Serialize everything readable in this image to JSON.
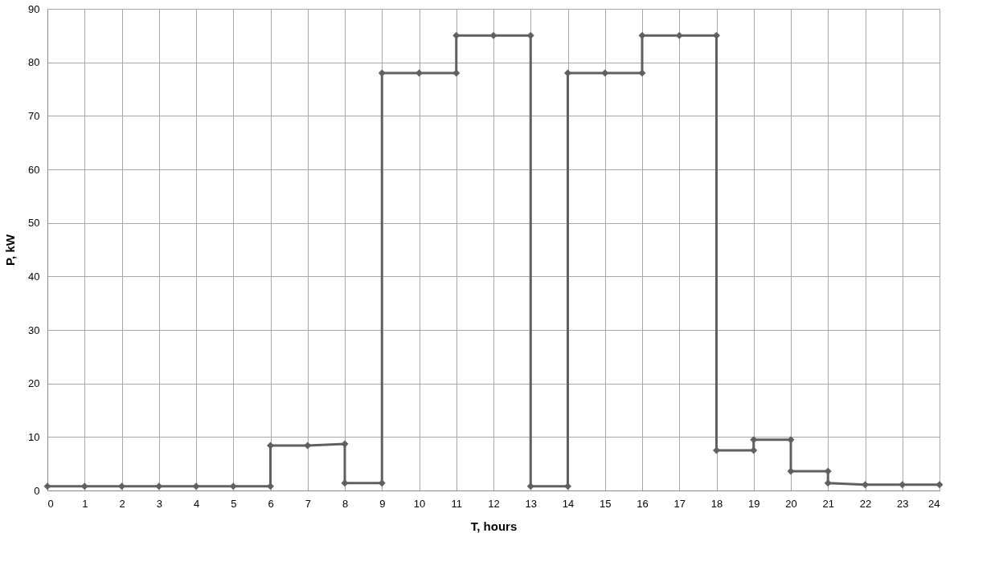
{
  "chart_data": {
    "type": "line",
    "xlabel": "T, hours",
    "ylabel": "P, kW",
    "xlim": [
      0,
      24
    ],
    "xticks": [
      0,
      1,
      2,
      3,
      4,
      5,
      6,
      7,
      8,
      9,
      10,
      11,
      12,
      13,
      14,
      15,
      16,
      17,
      18,
      19,
      20,
      21,
      22,
      23,
      24
    ],
    "ylim": [
      0,
      90
    ],
    "yticks": [
      0,
      10,
      20,
      30,
      40,
      50,
      60,
      70,
      80,
      90
    ],
    "grid": true,
    "marker": "diamond",
    "line_style": "solid",
    "legend": false,
    "series": [
      {
        "color": "#606060",
        "x": [
          0,
          1,
          2,
          3,
          4,
          5,
          6,
          6,
          7,
          8,
          8,
          9,
          9,
          10,
          11,
          11,
          12,
          13,
          13,
          14,
          14,
          15,
          16,
          16,
          17,
          18,
          18,
          19,
          19,
          20,
          20,
          21,
          21,
          22,
          23,
          24
        ],
        "values": [
          0.8,
          0.8,
          0.8,
          0.8,
          0.8,
          0.8,
          0.8,
          8.4,
          8.4,
          8.7,
          1.4,
          1.4,
          78,
          78,
          78,
          85,
          85,
          85,
          0.8,
          0.8,
          78,
          78,
          78,
          85,
          85,
          85,
          7.5,
          7.5,
          9.5,
          9.5,
          3.6,
          3.6,
          1.4,
          1.1,
          1.1,
          1.1
        ]
      }
    ]
  }
}
